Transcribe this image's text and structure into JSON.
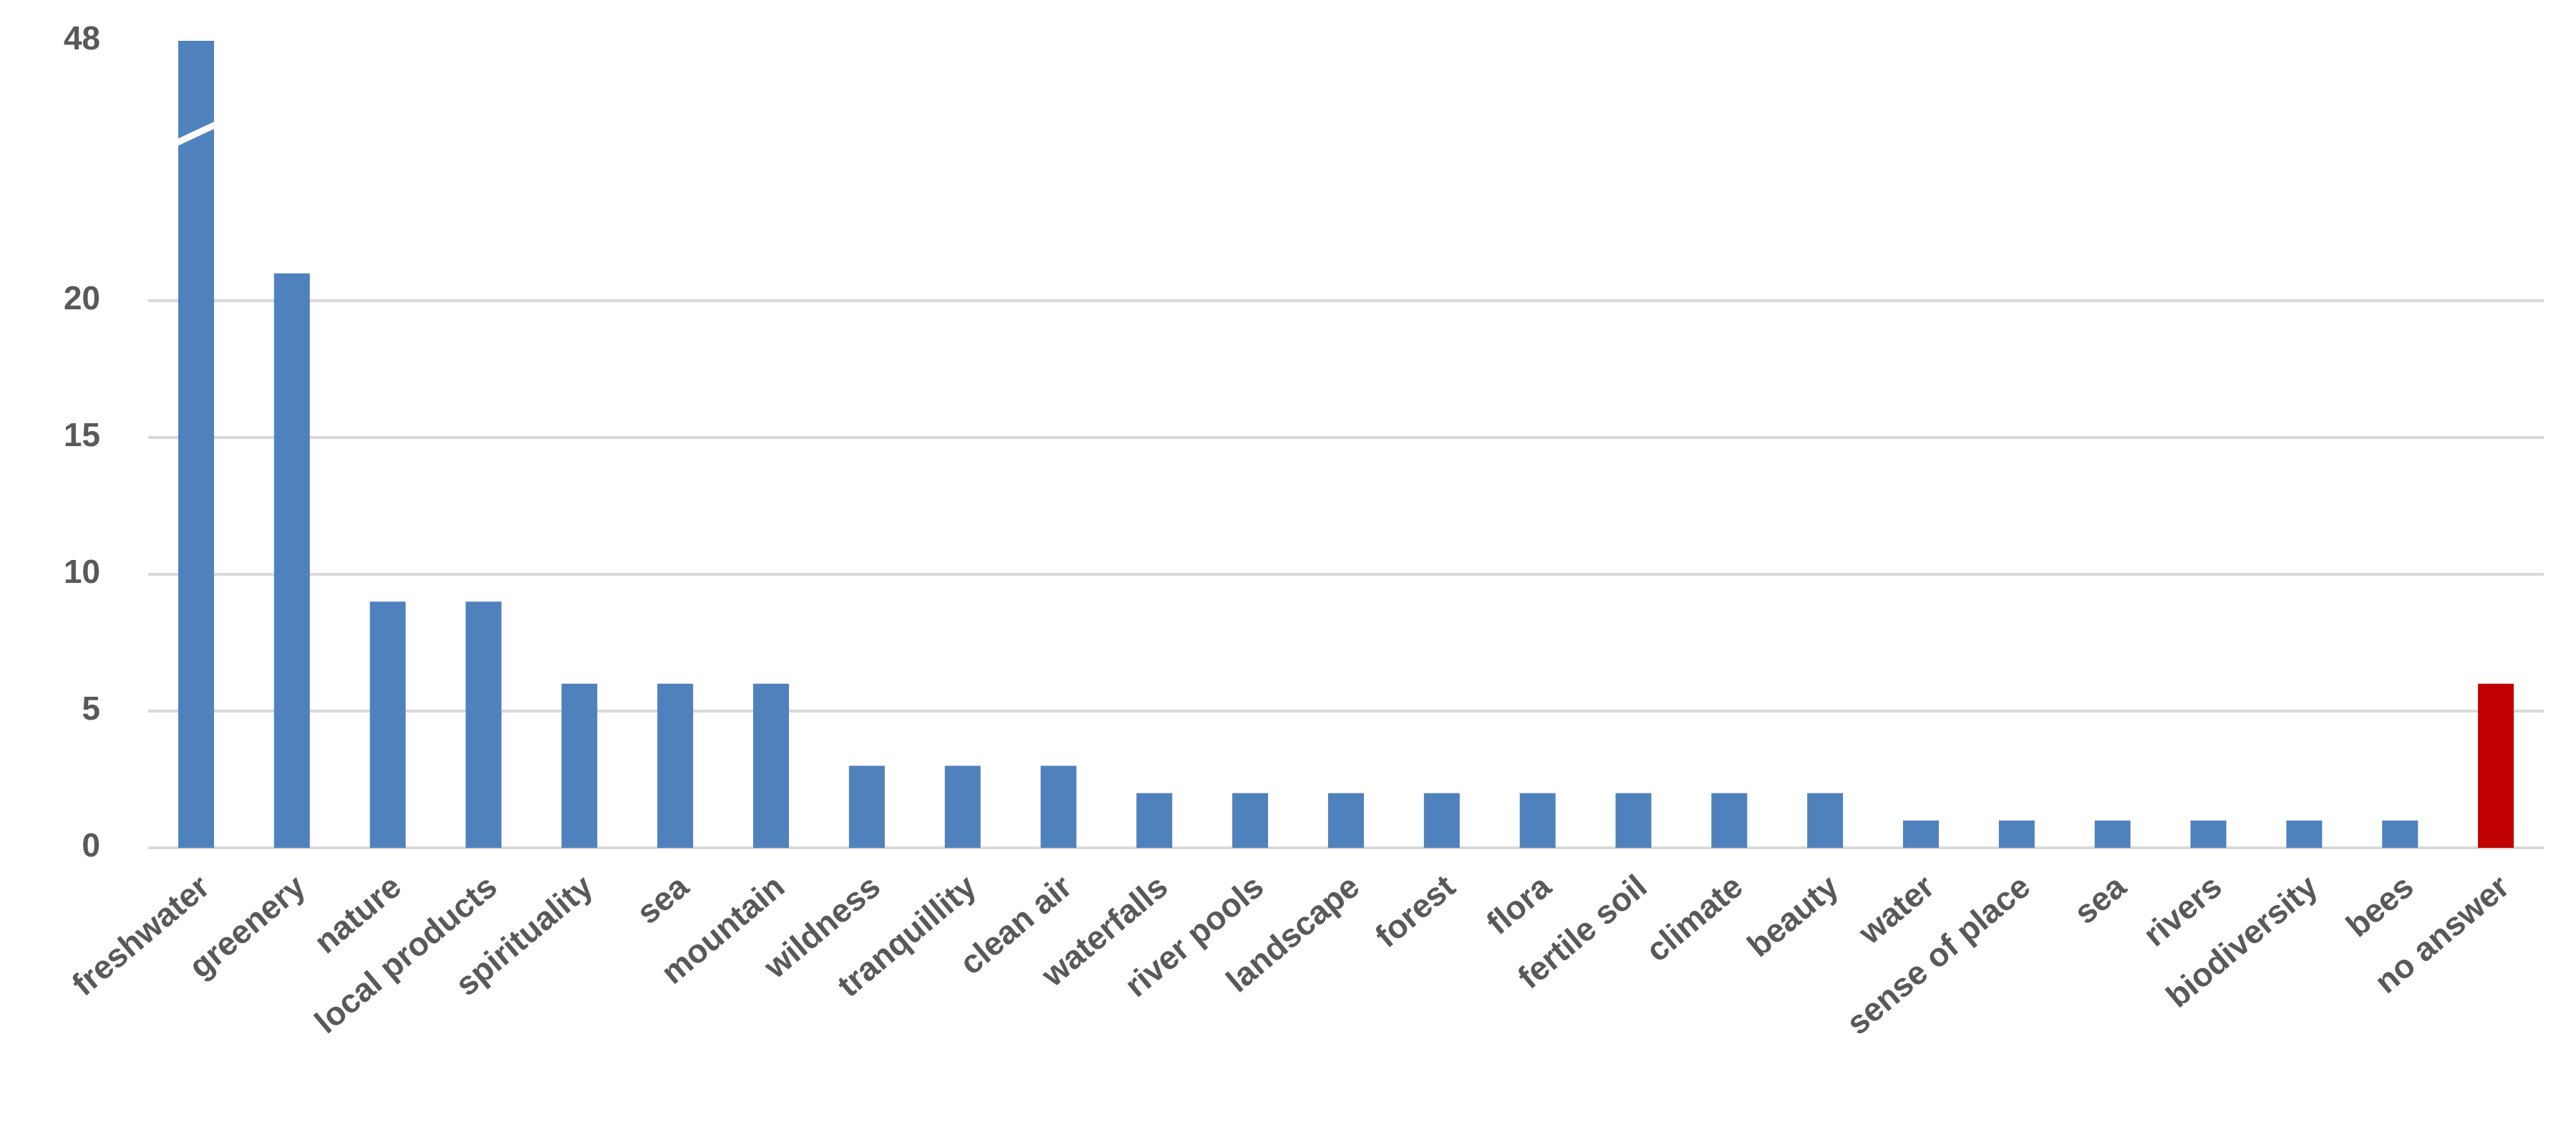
{
  "chart_data": {
    "type": "bar",
    "categories": [
      "freshwater",
      "greenery",
      "nature",
      "local products",
      "spirituality",
      "sea",
      "mountain",
      "wildness",
      "tranquillity",
      "clean air",
      "waterfalls",
      "river pools",
      "landscape",
      "forest",
      "flora",
      "fertile soil",
      "climate",
      "beauty",
      "water",
      "sense of place",
      "sea",
      "rivers",
      "biodiversity",
      "bees",
      "no answer"
    ],
    "values": [
      48,
      21,
      9,
      9,
      6,
      6,
      6,
      3,
      3,
      3,
      2,
      2,
      2,
      2,
      2,
      2,
      2,
      2,
      1,
      1,
      1,
      1,
      1,
      1,
      6
    ],
    "colors": [
      "#4f81bd",
      "#4f81bd",
      "#4f81bd",
      "#4f81bd",
      "#4f81bd",
      "#4f81bd",
      "#4f81bd",
      "#4f81bd",
      "#4f81bd",
      "#4f81bd",
      "#4f81bd",
      "#4f81bd",
      "#4f81bd",
      "#4f81bd",
      "#4f81bd",
      "#4f81bd",
      "#4f81bd",
      "#4f81bd",
      "#4f81bd",
      "#4f81bd",
      "#4f81bd",
      "#4f81bd",
      "#4f81bd",
      "#4f81bd",
      "#c00000"
    ],
    "ylim": [
      0,
      48
    ],
    "yticks": [
      0,
      5,
      10,
      15,
      20,
      48
    ],
    "axis_break": [
      26,
      44.5
    ],
    "grid": true
  }
}
